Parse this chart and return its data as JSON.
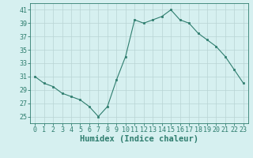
{
  "x": [
    0,
    1,
    2,
    3,
    4,
    5,
    6,
    7,
    8,
    9,
    10,
    11,
    12,
    13,
    14,
    15,
    16,
    17,
    18,
    19,
    20,
    21,
    22,
    23
  ],
  "y": [
    31,
    30,
    29.5,
    28.5,
    28,
    27.5,
    26.5,
    25,
    26.5,
    30.5,
    34,
    39.5,
    39,
    39.5,
    40,
    41,
    39.5,
    39,
    37.5,
    36.5,
    35.5,
    34,
    32,
    30
  ],
  "xlabel": "Humidex (Indice chaleur)",
  "ylim": [
    24,
    42
  ],
  "yticks": [
    25,
    27,
    29,
    31,
    33,
    35,
    37,
    39,
    41
  ],
  "xlim": [
    -0.5,
    23.5
  ],
  "xticks": [
    0,
    1,
    2,
    3,
    4,
    5,
    6,
    7,
    8,
    9,
    10,
    11,
    12,
    13,
    14,
    15,
    16,
    17,
    18,
    19,
    20,
    21,
    22,
    23
  ],
  "line_color": "#2e7d6e",
  "marker_color": "#2e7d6e",
  "bg_color": "#d6f0f0",
  "grid_color": "#b8d4d4",
  "spine_color": "#2e7d6e",
  "xlabel_color": "#2e7d6e",
  "tick_color": "#2e7d6e",
  "xlabel_fontsize": 7.5,
  "tick_fontsize": 6.0
}
